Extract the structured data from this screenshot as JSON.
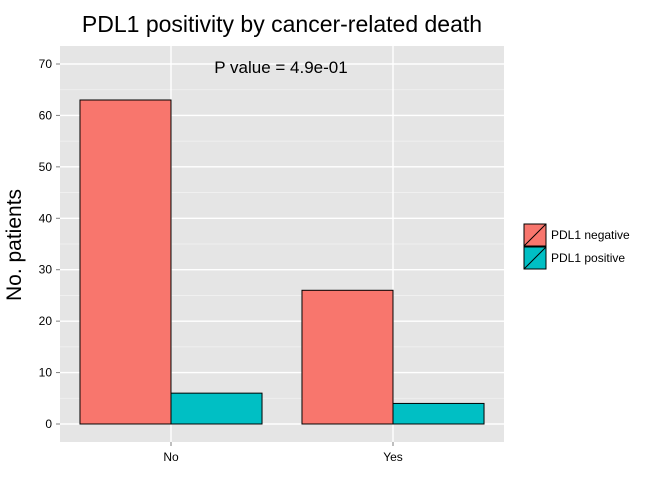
{
  "chart_data": {
    "type": "bar",
    "title": "PDL1 positivity by cancer-related death",
    "xlabel": "",
    "ylabel": "No. patients",
    "categories": [
      "No",
      "Yes"
    ],
    "series": [
      {
        "name": "PDL1 negative",
        "values": [
          63,
          26
        ],
        "color": "#F8766D"
      },
      {
        "name": "PDL1 positive",
        "values": [
          6,
          4
        ],
        "color": "#00BFC4"
      }
    ],
    "ylim": [
      0,
      73
    ],
    "yticks": [
      0,
      10,
      20,
      30,
      40,
      50,
      60,
      70
    ],
    "annotation": "P value = 4.9e-01",
    "grid": true,
    "panel_background": "#E5E5E5",
    "grid_color": "#FFFFFF",
    "legend_position": "right"
  }
}
